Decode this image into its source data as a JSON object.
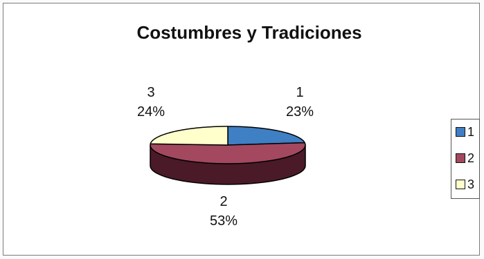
{
  "chart_data": {
    "type": "pie",
    "title": "Costumbres y Tradiciones",
    "categories": [
      "1",
      "2",
      "3"
    ],
    "values": [
      23,
      53,
      24
    ],
    "value_labels": [
      "23%",
      "53%",
      "24%"
    ],
    "colors": [
      "#3f7fc4",
      "#a3485f",
      "#ffffcc"
    ],
    "shadow_colors": [
      "#1f3f62",
      "#4a1a28",
      "#8a8a6a"
    ],
    "legend": {
      "position": "right",
      "entries": [
        "1",
        "2",
        "3"
      ]
    }
  }
}
